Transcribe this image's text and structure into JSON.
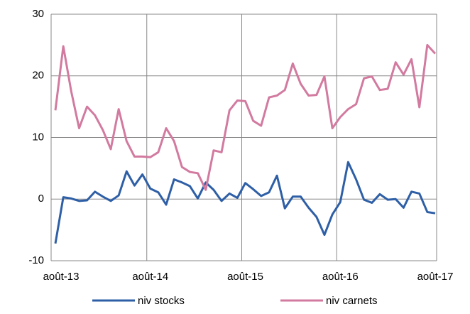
{
  "chart_data": {
    "type": "line",
    "categories": [
      "août-13",
      null,
      null,
      null,
      null,
      null,
      null,
      null,
      null,
      null,
      null,
      null,
      "août-14",
      null,
      null,
      null,
      null,
      null,
      null,
      null,
      null,
      null,
      null,
      null,
      "août-15",
      null,
      null,
      null,
      null,
      null,
      null,
      null,
      null,
      null,
      null,
      null,
      "août-16",
      null,
      null,
      null,
      null,
      null,
      null,
      null,
      null,
      null,
      null,
      null,
      "août-17"
    ],
    "series": [
      {
        "name": "niv stocks",
        "color": "#2e5fa6",
        "values": [
          -7.2,
          0.3,
          0.1,
          -0.3,
          -0.2,
          1.2,
          0.4,
          -0.3,
          0.6,
          4.5,
          2.2,
          4.0,
          1.7,
          1.1,
          -0.9,
          3.2,
          2.7,
          2.1,
          0.1,
          2.7,
          1.5,
          -0.3,
          0.9,
          0.2,
          2.6,
          1.6,
          0.5,
          1.1,
          3.8,
          -1.5,
          0.4,
          0.4,
          -1.4,
          -2.9,
          -5.8,
          -2.5,
          -0.5,
          6.0,
          3.2,
          -0.1,
          -0.6,
          0.8,
          -0.1,
          0.0,
          -1.4,
          1.2,
          0.9,
          -2.1,
          -2.3
        ]
      },
      {
        "name": "niv carnets",
        "color": "#d27a9f",
        "values": [
          14.4,
          24.8,
          17.5,
          11.5,
          15.0,
          13.6,
          11.2,
          8.1,
          14.6,
          9.4,
          6.9,
          6.9,
          6.8,
          7.6,
          11.5,
          9.4,
          5.2,
          4.4,
          4.2,
          1.5,
          7.9,
          7.6,
          14.4,
          16.0,
          15.9,
          12.7,
          11.9,
          16.5,
          16.8,
          17.7,
          22.0,
          18.7,
          16.8,
          16.9,
          19.9,
          11.5,
          13.3,
          14.6,
          15.4,
          19.6,
          19.9,
          17.7,
          17.9,
          22.2,
          20.2,
          22.7,
          14.9,
          25.0,
          23.6
        ]
      }
    ],
    "ylim": [
      -10,
      30
    ],
    "yticks": [
      -10,
      0,
      10,
      20,
      30
    ],
    "grid": true,
    "legend": "bottom"
  }
}
